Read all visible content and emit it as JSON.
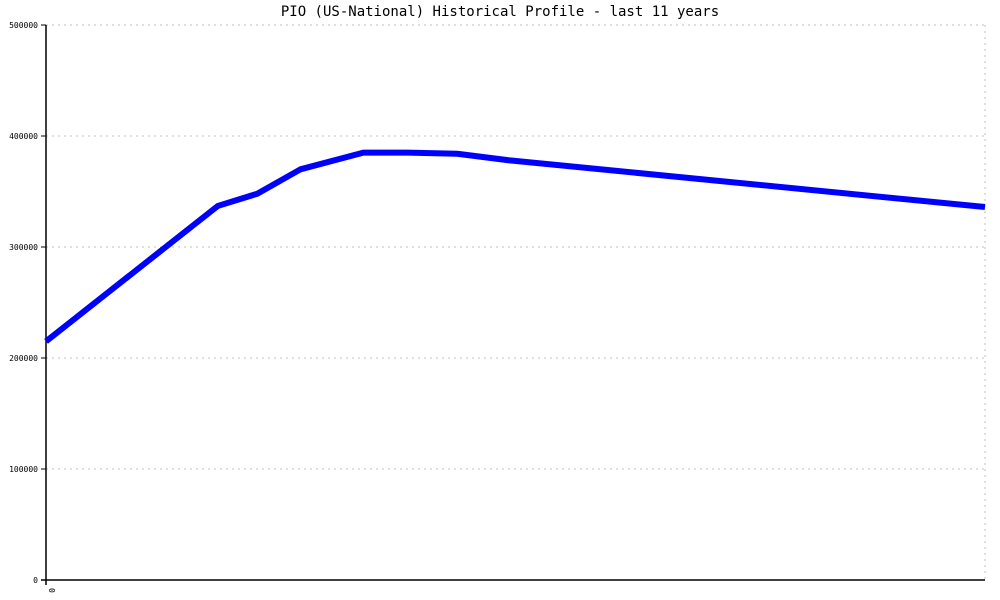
{
  "chart_data": {
    "type": "line",
    "title": "PIO (US-National) Historical Profile - last 11 years",
    "xlabel": "",
    "ylabel": "",
    "x_tick_labels": [
      "0"
    ],
    "y_tick_labels": [
      "0",
      "100000",
      "200000",
      "300000",
      "400000",
      "500000"
    ],
    "ylim": [
      0,
      500000
    ],
    "xlim": [
      0,
      10
    ],
    "grid": true,
    "line_color": "#0000ff",
    "grid_color": "#c0c0c0",
    "series": [
      {
        "x": [
          0,
          1.83,
          2.25,
          2.71,
          3.38,
          3.85,
          4.38,
          4.94,
          10
        ],
        "values": [
          215000,
          337000,
          348000,
          370000,
          385000,
          385000,
          384000,
          378000,
          336000
        ]
      }
    ]
  }
}
